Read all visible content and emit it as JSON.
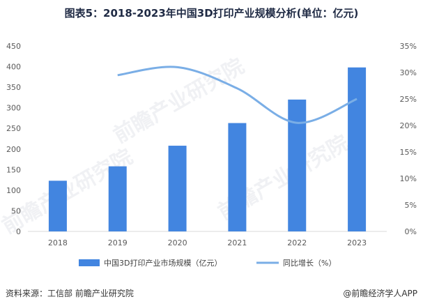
{
  "title": "图表5：2018-2023年中国3D打印产业规模分析(单位：亿元)",
  "source": "资料来源：工信部 前瞻产业研究院",
  "credit": "@前瞻经济学人APP",
  "watermark": "前瞻产业研究院",
  "chart_data": {
    "type": "bar",
    "categories": [
      "2018",
      "2019",
      "2020",
      "2021",
      "2022",
      "2023"
    ],
    "series": [
      {
        "name": "中国3D打印产业市场规模（亿元）",
        "type": "bar",
        "axis": "left",
        "color": "#4285e0",
        "values": [
          123,
          158,
          208,
          263,
          320,
          398
        ]
      },
      {
        "name": "同比增长（%）",
        "type": "line",
        "axis": "right",
        "color": "#7aaee6",
        "smooth": true,
        "values": [
          null,
          29.5,
          31.0,
          27.0,
          20.5,
          25.0
        ]
      }
    ],
    "y_left": {
      "min": 0,
      "max": 450,
      "step": 50,
      "ticks": [
        "0",
        "50",
        "100",
        "150",
        "200",
        "250",
        "300",
        "350",
        "400",
        "450"
      ]
    },
    "y_right": {
      "min": 0,
      "max": 35,
      "step": 5,
      "ticks": [
        "0%",
        "5%",
        "10%",
        "15%",
        "20%",
        "25%",
        "30%",
        "35%"
      ]
    },
    "grid": false,
    "legend_position": "bottom"
  }
}
